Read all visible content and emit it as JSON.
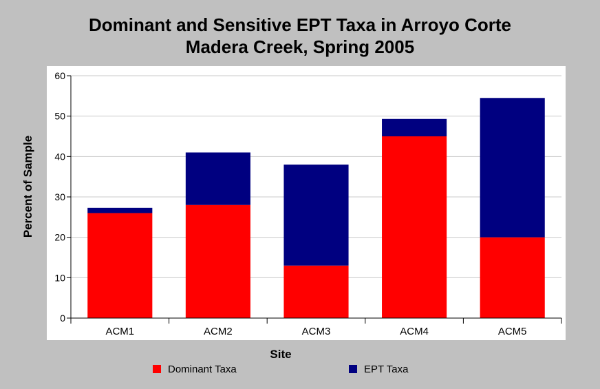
{
  "chart_data": {
    "type": "bar",
    "stacked": true,
    "title": [
      "Dominant and Sensitive EPT Taxa in Arroyo Corte",
      "Madera Creek, Spring 2005"
    ],
    "xlabel": "Site",
    "ylabel": "Percent of Sample",
    "categories": [
      "ACM1",
      "ACM2",
      "ACM3",
      "ACM4",
      "ACM5"
    ],
    "series": [
      {
        "name": "Dominant Taxa",
        "color": "#ff0000",
        "values": [
          26,
          28,
          13,
          45,
          20
        ]
      },
      {
        "name": "EPT Taxa",
        "color": "#000080",
        "values": [
          1.3,
          13,
          25,
          4.3,
          34.5
        ]
      }
    ],
    "ylim": [
      0,
      60
    ],
    "yticks": [
      0,
      10,
      20,
      30,
      40,
      50,
      60
    ],
    "grid": true,
    "legend_position": "bottom"
  }
}
